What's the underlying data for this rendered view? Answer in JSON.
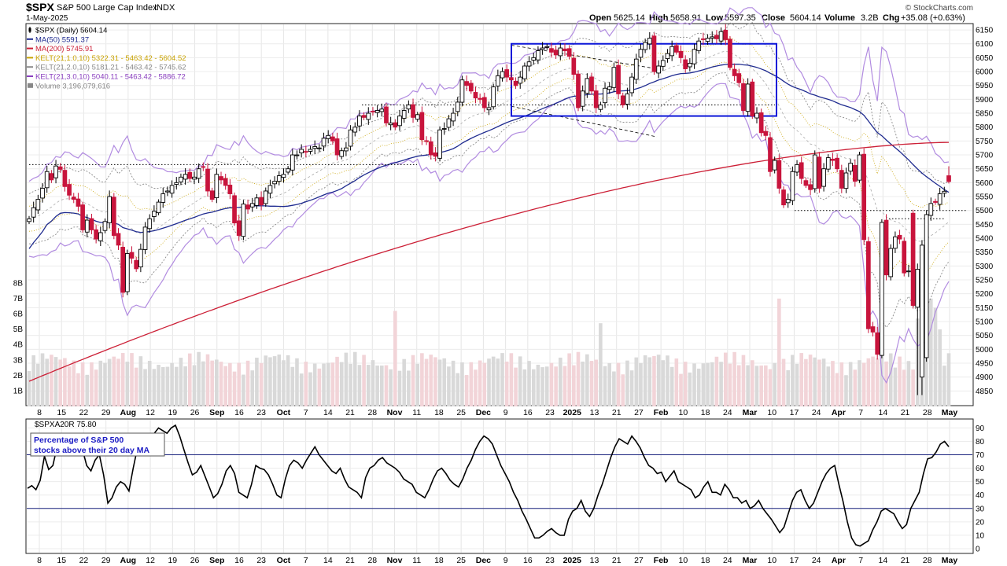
{
  "header": {
    "symbol": "$SPX",
    "name": "S&P 500 Large Cap Index",
    "exchange": "INDX",
    "date": "1-May-2025",
    "watermark": "© StockCharts.com",
    "ohlc": {
      "open_label": "Open",
      "open": "5625.14",
      "high_label": "High",
      "high": "5658.91",
      "low_label": "Low",
      "low": "5597.35",
      "close_label": "Close",
      "close": "5604.14",
      "volume_label": "Volume",
      "volume": "3.2B",
      "chg_label": "Chg",
      "chg": "+35.08 (+0.63%)"
    }
  },
  "legend": [
    {
      "text": "$SPX (Daily) 5604.14",
      "color": "#000000",
      "marker": "candle"
    },
    {
      "text": "MA(50) 5591.37",
      "color": "#1f2b8f",
      "marker": "line"
    },
    {
      "text": "MA(200) 5745.91",
      "color": "#cc1f36",
      "marker": "line"
    },
    {
      "text": "KELT(21,1.0,10) 5322.31 - 5463.42 - 5604.52",
      "color": "#c8a200",
      "marker": "line"
    },
    {
      "text": "KELT(21,2.0,10) 5181.21 - 5463.42 - 5745.62",
      "color": "#8a8a8a",
      "marker": "line"
    },
    {
      "text": "KELT(21,3.0,10) 5040.11 - 5463.42 - 5886.72",
      "color": "#8a3fbf",
      "marker": "line"
    },
    {
      "text": "Volume 3,196,079,616",
      "color": "#888888",
      "marker": "bar"
    }
  ],
  "lower_panel": {
    "label": "$SPXA20R 75.80",
    "annotation_line1": "Percentage of S&P 500",
    "annotation_line2": "stocks above their 20 day MA"
  },
  "colors": {
    "up": "#000000",
    "down": "#c8143c",
    "ma50": "#1f2b8f",
    "ma200": "#cc1f36",
    "kelt1": "#c8a200",
    "kelt2": "#8a8a8a",
    "kelt3": "#b18be0",
    "box": "#0a14d8",
    "vol_up": "#d9d9d9",
    "vol_down": "#f2d4d8",
    "hline": "#1a237e"
  },
  "chart_data": [
    {
      "type": "candlestick",
      "title": "$SPX (Daily)",
      "ylim": [
        4800,
        6170
      ],
      "y_ticks": [
        4850,
        4900,
        4950,
        5000,
        5050,
        5100,
        5150,
        5200,
        5250,
        5300,
        5350,
        5400,
        5450,
        5500,
        5550,
        5600,
        5650,
        5700,
        5750,
        5800,
        5850,
        5900,
        5950,
        6000,
        6050,
        6100,
        6150
      ],
      "volume_ticks": [
        "1B",
        "2B",
        "3B",
        "4B",
        "5B",
        "6B",
        "7B",
        "8B"
      ],
      "x_tick_labels": [
        "8",
        "15",
        "22",
        "29",
        "Aug",
        "12",
        "19",
        "26",
        "Sep",
        "16",
        "23",
        "Oct",
        "7",
        "14",
        "21",
        "28",
        "Nov",
        "11",
        "18",
        "25",
        "Dec",
        "9",
        "16",
        "23",
        "2025",
        "13",
        "21",
        "27",
        "Feb",
        "10",
        "18",
        "24",
        "Mar",
        "10",
        "17",
        "24",
        "Apr",
        "7",
        "14",
        "21",
        "28",
        "May"
      ],
      "grid": true,
      "legend_position": "top-left",
      "closes": [
        5470,
        5510,
        5540,
        5580,
        5640,
        5610,
        5660,
        5648,
        5586,
        5555,
        5540,
        5515,
        5430,
        5465,
        5430,
        5397,
        5420,
        5460,
        5550,
        5410,
        5375,
        5205,
        5345,
        5328,
        5290,
        5360,
        5440,
        5470,
        5497,
        5530,
        5560,
        5570,
        5590,
        5600,
        5620,
        5630,
        5615,
        5620,
        5650,
        5655,
        5570,
        5540,
        5630,
        5610,
        5590,
        5560,
        5455,
        5410,
        5523,
        5505,
        5525,
        5545,
        5520,
        5570,
        5590,
        5605,
        5625,
        5630,
        5650,
        5700,
        5700,
        5720,
        5710,
        5720,
        5730,
        5725,
        5760,
        5770,
        5750,
        5700,
        5715,
        5725,
        5790,
        5800,
        5840,
        5835,
        5850,
        5855,
        5860,
        5865,
        5815,
        5815,
        5800,
        5840,
        5860,
        5880,
        5835,
        5845,
        5755,
        5750,
        5700,
        5695,
        5790,
        5795,
        5830,
        5850,
        5890,
        5970,
        5950,
        5930,
        5905,
        5900,
        5870,
        5870,
        5945,
        5985,
        6000,
        5980,
        5970,
        5950,
        5980,
        6020,
        6035,
        6050,
        6075,
        6085,
        6090,
        6070,
        6060,
        6085,
        6075,
        6055,
        5990,
        5870,
        5930,
        5975,
        5930,
        5870,
        5880,
        5940,
        5945,
        6015,
        5920,
        5880,
        5920,
        5980,
        6045,
        6080,
        6105,
        6120,
        6000,
        6020,
        6040,
        6065,
        6090,
        6070,
        6050,
        6010,
        6030,
        6080,
        6110,
        6115,
        6120,
        6125,
        6118,
        6144,
        6115,
        6015,
        5985,
        5960,
        5860,
        5955,
        5840,
        5850,
        5780,
        5770,
        5640,
        5680,
        5580,
        5520,
        5540,
        5640,
        5665,
        5615,
        5590,
        5575,
        5700,
        5580,
        5650,
        5690,
        5680,
        5650,
        5580,
        5635,
        5670,
        5605,
        5700,
        5395,
        5074,
        5062,
        4982,
        5457,
        5268,
        5363,
        5405,
        5397,
        5275,
        5282,
        5158,
        5288,
        5375,
        5485,
        5525,
        5529,
        5560,
        5569,
        5604
      ],
      "ma50": [
        5360,
        5445,
        5540,
        5583,
        5591
      ],
      "ma200": [
        4885,
        5745
      ]
    },
    {
      "type": "line",
      "title": "$SPXA20R",
      "ylim": [
        0,
        92
      ],
      "y_ticks": [
        0,
        10,
        20,
        30,
        40,
        50,
        60,
        70,
        80,
        90
      ],
      "reference_lines": [
        30,
        70
      ],
      "last_value": 75.8,
      "values": [
        45,
        47,
        44,
        51,
        69,
        59,
        62,
        76,
        82,
        80,
        76,
        74,
        70,
        74,
        62,
        58,
        66,
        70,
        55,
        34,
        38,
        46,
        50,
        48,
        43,
        60,
        75,
        81,
        84,
        82,
        86,
        90,
        88,
        86,
        90,
        92,
        84,
        74,
        64,
        55,
        57,
        62,
        54,
        46,
        38,
        41,
        48,
        58,
        62,
        56,
        42,
        40,
        38,
        48,
        62,
        60,
        59,
        55,
        48,
        40,
        38,
        52,
        62,
        66,
        64,
        60,
        66,
        71,
        76,
        70,
        66,
        62,
        58,
        56,
        60,
        52,
        46,
        44,
        42,
        38,
        53,
        60,
        62,
        66,
        68,
        64,
        62,
        60,
        57,
        52,
        50,
        48,
        42,
        40,
        38,
        44,
        52,
        58,
        60,
        56,
        51,
        48,
        46,
        52,
        60,
        66,
        74,
        80,
        84,
        82,
        78,
        70,
        62,
        56,
        50,
        42,
        36,
        28,
        22,
        15,
        8,
        8,
        10,
        13,
        15,
        12,
        10,
        10,
        22,
        28,
        30,
        36,
        28,
        24,
        30,
        40,
        48,
        58,
        68,
        76,
        82,
        80,
        78,
        84,
        80,
        75,
        68,
        62,
        60,
        56,
        57,
        50,
        54,
        58,
        50,
        48,
        46,
        44,
        38,
        40,
        46,
        50,
        42,
        42,
        40,
        48,
        44,
        38,
        38,
        34,
        36,
        30,
        32,
        36,
        30,
        26,
        22,
        17,
        12,
        16,
        26,
        36,
        42,
        44,
        36,
        30,
        34,
        42,
        50,
        56,
        60,
        62,
        48,
        35,
        20,
        8,
        3,
        2,
        4,
        6,
        14,
        20,
        28,
        30,
        28,
        26,
        20,
        15,
        18,
        30,
        36,
        42,
        56,
        67,
        68,
        72,
        78,
        80,
        76
      ]
    }
  ]
}
